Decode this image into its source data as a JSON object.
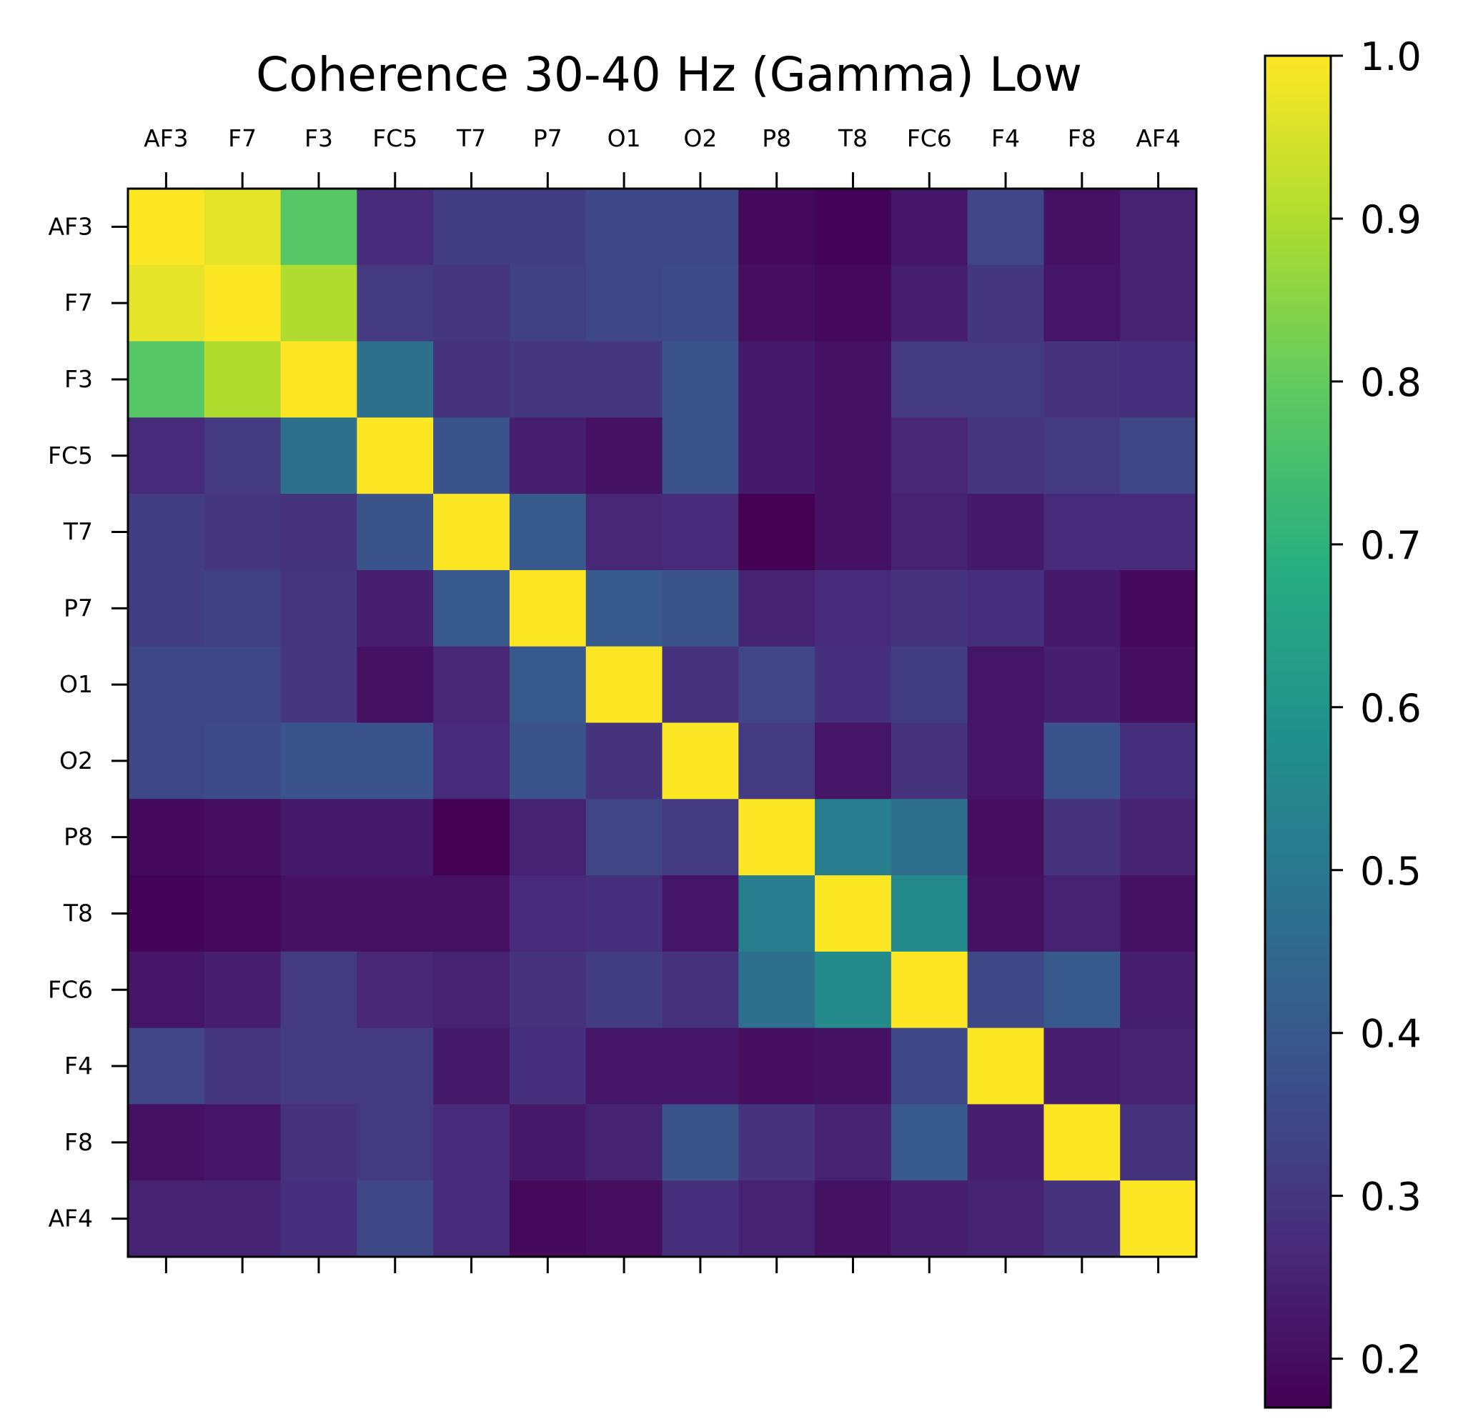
{
  "chart_data": {
    "type": "heatmap",
    "title": "Coherence 30-40 Hz (Gamma) Low",
    "x_labels": [
      "AF3",
      "F7",
      "F3",
      "FC5",
      "T7",
      "P7",
      "O1",
      "O2",
      "P8",
      "T8",
      "FC6",
      "F4",
      "F8",
      "AF4"
    ],
    "y_labels": [
      "AF3",
      "F7",
      "F3",
      "FC5",
      "T7",
      "P7",
      "O1",
      "O2",
      "P8",
      "T8",
      "FC6",
      "F4",
      "F8",
      "AF4"
    ],
    "x_tick_position": "top",
    "colormap": "viridis",
    "colorbar": {
      "vmin": 0.17,
      "vmax": 1.0,
      "ticks": [
        0.2,
        0.3,
        0.4,
        0.5,
        0.6,
        0.7,
        0.8,
        0.9,
        1.0
      ],
      "tick_labels": [
        "0.2",
        "0.3",
        "0.4",
        "0.5",
        "0.6",
        "0.7",
        "0.8",
        "0.9",
        "1.0"
      ]
    },
    "values": [
      [
        1.0,
        0.97,
        0.78,
        0.27,
        0.32,
        0.32,
        0.35,
        0.35,
        0.19,
        0.18,
        0.22,
        0.34,
        0.21,
        0.25
      ],
      [
        0.97,
        1.0,
        0.9,
        0.31,
        0.3,
        0.33,
        0.35,
        0.36,
        0.2,
        0.19,
        0.24,
        0.3,
        0.22,
        0.25
      ],
      [
        0.78,
        0.9,
        1.0,
        0.47,
        0.29,
        0.3,
        0.3,
        0.38,
        0.23,
        0.21,
        0.31,
        0.31,
        0.29,
        0.28
      ],
      [
        0.27,
        0.31,
        0.47,
        1.0,
        0.38,
        0.24,
        0.21,
        0.38,
        0.23,
        0.21,
        0.26,
        0.3,
        0.31,
        0.35
      ],
      [
        0.32,
        0.3,
        0.29,
        0.38,
        1.0,
        0.4,
        0.26,
        0.27,
        0.17,
        0.21,
        0.25,
        0.23,
        0.27,
        0.27
      ],
      [
        0.32,
        0.33,
        0.3,
        0.24,
        0.4,
        1.0,
        0.4,
        0.38,
        0.25,
        0.27,
        0.29,
        0.28,
        0.23,
        0.19
      ],
      [
        0.35,
        0.35,
        0.3,
        0.21,
        0.26,
        0.4,
        1.0,
        0.29,
        0.34,
        0.28,
        0.32,
        0.22,
        0.24,
        0.2
      ],
      [
        0.35,
        0.36,
        0.38,
        0.38,
        0.27,
        0.38,
        0.29,
        1.0,
        0.31,
        0.22,
        0.29,
        0.22,
        0.38,
        0.28
      ],
      [
        0.19,
        0.2,
        0.23,
        0.23,
        0.17,
        0.25,
        0.34,
        0.31,
        1.0,
        0.52,
        0.47,
        0.2,
        0.29,
        0.25
      ],
      [
        0.18,
        0.19,
        0.21,
        0.21,
        0.21,
        0.27,
        0.28,
        0.22,
        0.52,
        1.0,
        0.56,
        0.21,
        0.25,
        0.21
      ],
      [
        0.22,
        0.24,
        0.31,
        0.26,
        0.25,
        0.29,
        0.32,
        0.29,
        0.47,
        0.56,
        1.0,
        0.35,
        0.4,
        0.24
      ],
      [
        0.34,
        0.3,
        0.31,
        0.31,
        0.23,
        0.28,
        0.22,
        0.22,
        0.2,
        0.21,
        0.35,
        1.0,
        0.24,
        0.25
      ],
      [
        0.21,
        0.22,
        0.29,
        0.31,
        0.27,
        0.23,
        0.25,
        0.38,
        0.29,
        0.25,
        0.4,
        0.24,
        1.0,
        0.29
      ],
      [
        0.25,
        0.25,
        0.28,
        0.35,
        0.27,
        0.19,
        0.2,
        0.28,
        0.25,
        0.21,
        0.24,
        0.25,
        0.29,
        1.0
      ]
    ]
  }
}
